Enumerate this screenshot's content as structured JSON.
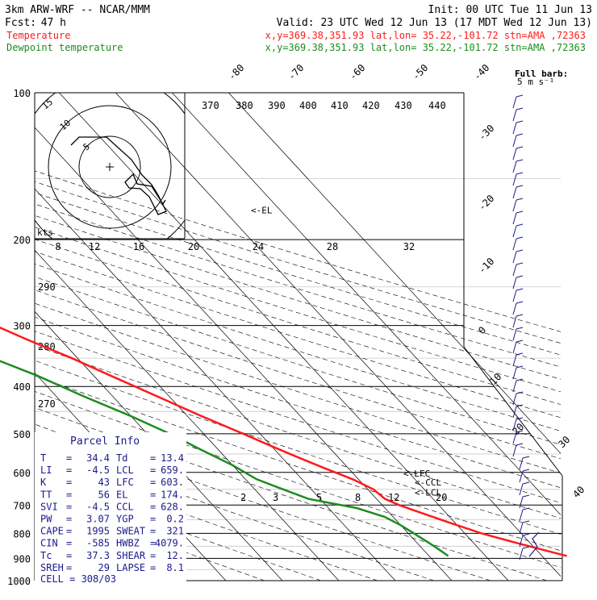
{
  "header": {
    "model": "3km ARW-WRF -- NCAR/MMM",
    "init": "Init: 00 UTC Tue 11 Jun 13",
    "fcst_label": "Fcst:",
    "fcst_value": "47 h",
    "valid": "Valid: 23 UTC Wed 12 Jun 13 (17 MDT Wed 12 Jun 13)",
    "temp_label": "Temperature",
    "temp_loc": "x,y=369.38,351.93   lat,lon= 35.22,-101.72   stn=AMA ,72363",
    "dew_label": "Dewpoint temperature",
    "dew_loc": "x,y=369.38,351.93   lat,lon= 35.22,-101.72   stn=AMA ,72363"
  },
  "colors": {
    "temperature": "#ff1a1a",
    "dewpoint": "#1e8c1e",
    "wind": "#1a1a8c",
    "grid": "#000000"
  },
  "wind_key": {
    "title": "Full barb:",
    "value": "5 m s⁻¹"
  },
  "hodograph": {
    "kts": "kts",
    "rings": [
      "5",
      "10",
      "15"
    ],
    "speed_ticks": [
      "8",
      "12",
      "16",
      "20",
      "24",
      "28",
      "32"
    ]
  },
  "theta_labels": [
    "370",
    "380",
    "390",
    "400",
    "410",
    "420",
    "430",
    "440"
  ],
  "mixing_labels": [
    "290",
    "280",
    "270"
  ],
  "skew_labels": [
    "-80",
    "-70",
    "-60",
    "-50",
    "-40",
    "-30",
    "-20",
    "-10",
    "0",
    "10",
    "20",
    "30",
    "40"
  ],
  "mr_labels": [
    "2",
    "3",
    "5",
    "8",
    "12",
    "20"
  ],
  "markers": {
    "el": "<-EL",
    "lfc": "<-LFC",
    "ccl": "<-CCL",
    "lcl": "<-LCL"
  },
  "parcel": {
    "title": "Parcel Info",
    "rows": [
      [
        "T",
        "34.4",
        "Td",
        "13.4"
      ],
      [
        "LI",
        "-4.5",
        "LCL",
        "659."
      ],
      [
        "K",
        "43",
        "LFC",
        "603."
      ],
      [
        "TT",
        "56",
        "EL",
        "174."
      ],
      [
        "SVI",
        "-4.5",
        "CCL",
        "628."
      ],
      [
        "PW",
        "3.07",
        "YGP",
        "0.2"
      ],
      [
        "CAPE",
        "1995",
        "SWEAT",
        "321"
      ],
      [
        "CIN",
        "-585",
        "HWBZ",
        "4079."
      ],
      [
        "Tc",
        "37.3",
        "SHEAR",
        "12."
      ],
      [
        "SREH",
        "29",
        "LAPSE",
        "8.1"
      ]
    ],
    "cell": "CELL = 308/03"
  },
  "chart_data": {
    "type": "line",
    "title": "3km ARW-WRF -- NCAR/MMM",
    "ylabel": "",
    "xlabel": "",
    "y_scale": "log pressure",
    "y_ticks": [
      100,
      200,
      300,
      400,
      500,
      600,
      700,
      800,
      900,
      1000
    ],
    "ylim": [
      1000,
      100
    ],
    "x_ticks": [
      -80,
      -70,
      -60,
      -50,
      -40,
      -30,
      -20,
      -10,
      0,
      10,
      20,
      30,
      40
    ],
    "series": [
      {
        "name": "Temperature",
        "color": "#ff1a1a",
        "pressure": [
          890,
          840,
          800,
          760,
          720,
          700,
          680,
          650,
          620,
          590,
          560,
          530,
          500,
          460,
          420,
          380,
          350,
          320,
          290,
          260,
          240,
          220,
          200,
          180,
          165,
          150,
          140,
          130,
          120,
          110,
          100
        ],
        "temperature": [
          34.4,
          28,
          23,
          19,
          15,
          13,
          11.5,
          11,
          9,
          6,
          3,
          0,
          -3,
          -7.5,
          -12,
          -17,
          -21,
          -26,
          -31,
          -37,
          -41,
          -46,
          -51,
          -55,
          -57,
          -58,
          -58,
          -58,
          -57,
          -56,
          -54
        ]
      },
      {
        "name": "Dewpoint temperature",
        "color": "#1e8c1e",
        "pressure": [
          890,
          850,
          800,
          770,
          740,
          710,
          680,
          660,
          640,
          620,
          580,
          540,
          500,
          460,
          420,
          380,
          350,
          320,
          290,
          260,
          230,
          210,
          200,
          180,
          160,
          140,
          120,
          100
        ],
        "temperature": [
          13.4,
          12.5,
          11,
          10,
          8.5,
          5,
          -2,
          -4,
          -6,
          -8,
          -10,
          -13,
          -16,
          -20,
          -25,
          -30,
          -35,
          -38,
          -41,
          -45,
          -50,
          -56,
          -60,
          -66,
          -72,
          -78,
          -84,
          -90
        ]
      }
    ]
  }
}
